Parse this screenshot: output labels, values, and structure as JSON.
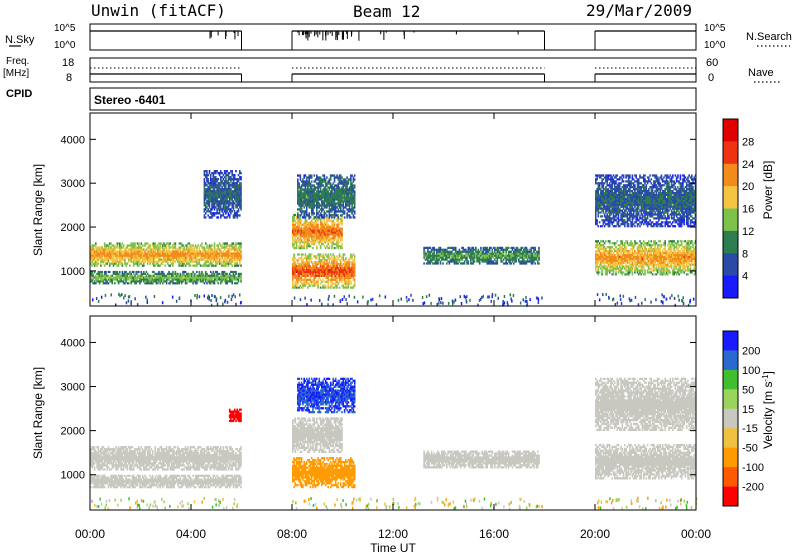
{
  "header": {
    "station": "Unwin (fitACF)",
    "beam": "Beam 12",
    "date": "29/Mar/2009"
  },
  "aux_labels": {
    "nsky": "N.Sky",
    "nsearch": "N.Search",
    "freq_line1": "Freq.",
    "freq_line2": "[MHz]",
    "nave": "Nave",
    "cpid": "CPID",
    "program": "Stereo -6401"
  },
  "aux_ticks": {
    "noise_left": [
      "10^5",
      "10^0"
    ],
    "noise_right": [
      "10^5",
      "10^0"
    ],
    "freq_left": [
      "18",
      "8"
    ],
    "nave_right": [
      "60",
      "0"
    ]
  },
  "colors": {
    "power_scale": [
      "#1a1aff",
      "#2a4aa8",
      "#2e7d4f",
      "#7cc24a",
      "#f5c542",
      "#f28a1c",
      "#ee3311",
      "#e00000"
    ],
    "velocity_scale": [
      "#ff0000",
      "#ff5a00",
      "#ff9a00",
      "#f0c040",
      "#c8c8c0",
      "#9bd45a",
      "#3fbf2f",
      "#2a6ad0",
      "#1a1aff"
    ]
  },
  "chart_data": [
    {
      "type": "heatmap",
      "name": "power",
      "title": "",
      "ylabel": "Slant Range [km]",
      "xlabel": "Time UT",
      "x_ticks": [
        "00:00",
        "04:00",
        "08:00",
        "12:00",
        "16:00",
        "20:00",
        "00:00"
      ],
      "x_range_hours": [
        0,
        24
      ],
      "y_ticks": [
        1000,
        2000,
        3000,
        4000
      ],
      "ylim": [
        200,
        4600
      ],
      "colorbar_label": "Power [dB]",
      "colorbar_ticks": [
        "28",
        "24",
        "20",
        "16",
        "12",
        "8",
        "4"
      ],
      "colorbar_range": [
        0,
        32
      ],
      "data_gaps_hours": [
        [
          6.0,
          8.0
        ],
        [
          18.0,
          20.0
        ]
      ],
      "echo_regions": [
        {
          "t_start": 0.0,
          "t_end": 6.0,
          "range_km": [
            1100,
            1650
          ],
          "power_db": 20
        },
        {
          "t_start": 0.0,
          "t_end": 6.0,
          "range_km": [
            700,
            1000
          ],
          "power_db": 12
        },
        {
          "t_start": 4.5,
          "t_end": 6.0,
          "range_km": [
            2200,
            3300
          ],
          "power_db": 6
        },
        {
          "t_start": 8.0,
          "t_end": 10.5,
          "range_km": [
            600,
            1400
          ],
          "power_db": 24
        },
        {
          "t_start": 8.0,
          "t_end": 10.0,
          "range_km": [
            1500,
            2300
          ],
          "power_db": 22
        },
        {
          "t_start": 8.2,
          "t_end": 10.5,
          "range_km": [
            2200,
            3200
          ],
          "power_db": 8
        },
        {
          "t_start": 13.2,
          "t_end": 17.8,
          "range_km": [
            1150,
            1550
          ],
          "power_db": 10
        },
        {
          "t_start": 20.0,
          "t_end": 24.0,
          "range_km": [
            900,
            1700
          ],
          "power_db": 20
        },
        {
          "t_start": 20.0,
          "t_end": 24.0,
          "range_km": [
            2000,
            3200
          ],
          "power_db": 6
        }
      ]
    },
    {
      "type": "heatmap",
      "name": "velocity",
      "title": "",
      "ylabel": "Slant Range [km]",
      "xlabel": "Time UT",
      "x_ticks": [
        "00:00",
        "04:00",
        "08:00",
        "12:00",
        "16:00",
        "20:00",
        "00:00"
      ],
      "x_range_hours": [
        0,
        24
      ],
      "y_ticks": [
        1000,
        2000,
        3000,
        4000
      ],
      "ylim": [
        200,
        4600
      ],
      "colorbar_label": "Velocity [m s^-1]",
      "colorbar_ticks": [
        "200",
        "100",
        "50",
        "15",
        "-15",
        "-50",
        "-100",
        "-200"
      ],
      "data_gaps_hours": [
        [
          6.0,
          8.0
        ],
        [
          18.0,
          20.0
        ]
      ],
      "echo_regions": [
        {
          "t_start": 0.0,
          "t_end": 6.0,
          "range_km": [
            1100,
            1650
          ],
          "velocity": 0
        },
        {
          "t_start": 0.0,
          "t_end": 6.0,
          "range_km": [
            700,
            1000
          ],
          "velocity": 0
        },
        {
          "t_start": 5.5,
          "t_end": 6.0,
          "range_km": [
            2200,
            2500
          ],
          "velocity": -200
        },
        {
          "t_start": 8.0,
          "t_end": 10.5,
          "range_km": [
            700,
            1400
          ],
          "velocity": -60
        },
        {
          "t_start": 8.0,
          "t_end": 10.0,
          "range_km": [
            1500,
            2300
          ],
          "velocity": 0
        },
        {
          "t_start": 8.2,
          "t_end": 10.5,
          "range_km": [
            2400,
            3200
          ],
          "velocity": 150
        },
        {
          "t_start": 13.2,
          "t_end": 17.8,
          "range_km": [
            1150,
            1550
          ],
          "velocity": 0
        },
        {
          "t_start": 20.0,
          "t_end": 24.0,
          "range_km": [
            900,
            1700
          ],
          "velocity": 0
        },
        {
          "t_start": 20.0,
          "t_end": 24.0,
          "range_km": [
            2000,
            3200
          ],
          "velocity": 0
        }
      ]
    }
  ],
  "axis_title_x": "Time UT"
}
